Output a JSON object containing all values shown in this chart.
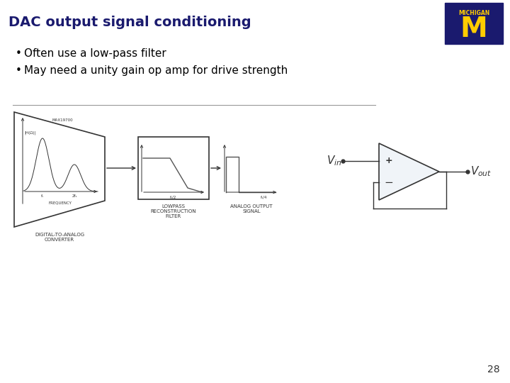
{
  "title": "DAC output signal conditioning",
  "title_color": "#1a1a6e",
  "title_fontsize": 14,
  "bullet1": "Often use a low-pass filter",
  "bullet2": "May need a unity gain op amp for drive strength",
  "bullet_fontsize": 11,
  "bg_color": "#ffffff",
  "slide_number": "28",
  "michigan_navy": "#1a1a6e",
  "michigan_yellow": "#FFCC00",
  "lc": "#333333",
  "diagram_label1": "DIGITAL-TO-ANALOG\nCONVERTER",
  "diagram_label2": "LOWPASS\nRECONSTRUCTION\nFILTER",
  "diagram_label3": "ANALOG OUTPUT\nSIGNAL",
  "dac_label": "MAX19700",
  "freq_label": "FREQUENCY",
  "f_s": "fₛ",
  "f_s2": "2fₛ",
  "lpf_freq": "fₛ/2",
  "out_freq": "fₛ/4",
  "h_label": "|H(Ω)|"
}
